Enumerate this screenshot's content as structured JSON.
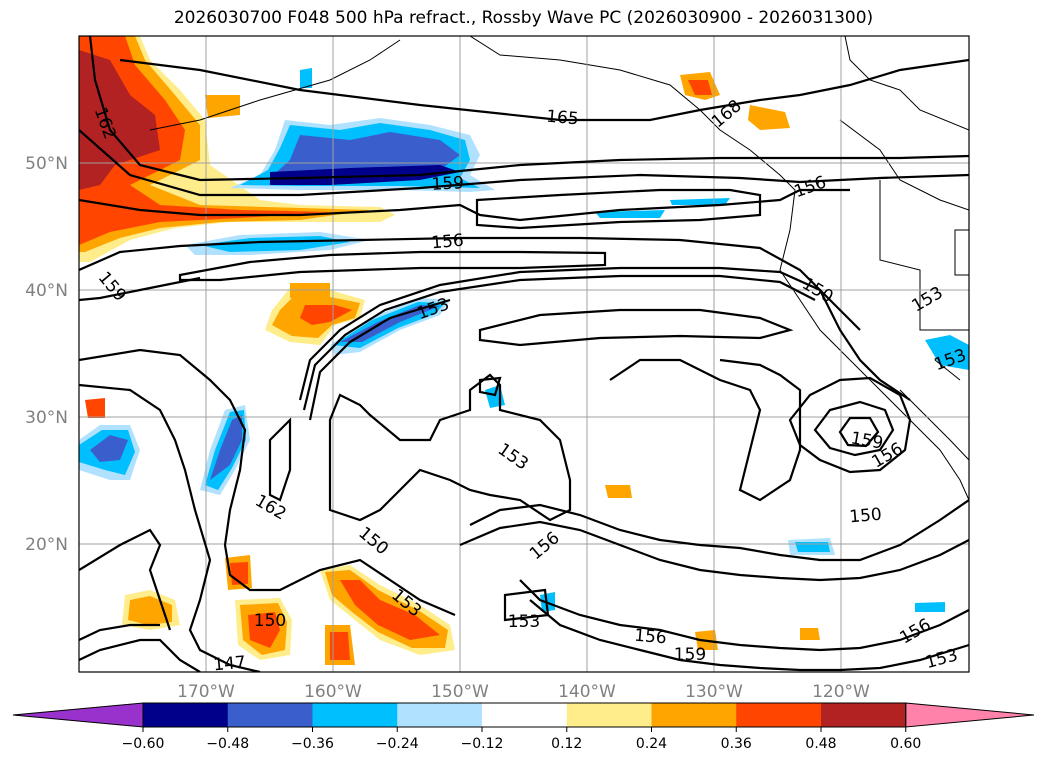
{
  "title": "2026030700 F048 500 hPa refract., Rossby Wave PC (2026030900 - 2026031300)",
  "lat_labels": [
    "50°N",
    "40°N",
    "30°N",
    "20°N"
  ],
  "lon_labels": [
    "170°W",
    "160°W",
    "150°W",
    "140°W",
    "130°W",
    "120°W"
  ],
  "contour_labels": [
    {
      "text": "165"
    },
    {
      "text": "168"
    },
    {
      "text": "162"
    },
    {
      "text": "159"
    },
    {
      "text": "156"
    },
    {
      "text": "156"
    },
    {
      "text": "159"
    },
    {
      "text": "153"
    },
    {
      "text": "150"
    },
    {
      "text": "153"
    },
    {
      "text": "153"
    },
    {
      "text": "153"
    },
    {
      "text": "159"
    },
    {
      "text": "156"
    },
    {
      "text": "162"
    },
    {
      "text": "150"
    },
    {
      "text": "156"
    },
    {
      "text": "150"
    },
    {
      "text": "153"
    },
    {
      "text": "153"
    },
    {
      "text": "150"
    },
    {
      "text": "147"
    },
    {
      "text": "156"
    },
    {
      "text": "159"
    },
    {
      "text": "156"
    },
    {
      "text": "153"
    }
  ],
  "colorbar": {
    "ticks": [
      "−0.60",
      "−0.48",
      "−0.36",
      "−0.24",
      "−0.12",
      "0.12",
      "0.24",
      "0.36",
      "0.48",
      "0.60"
    ],
    "colors": [
      "#9932cc",
      "#00008b",
      "#3a5fcd",
      "#00bfff",
      "#b0e2ff",
      "#ffffff",
      "#ffec8b",
      "#ffa500",
      "#ff4500",
      "#b22222",
      "#ff82ab"
    ]
  }
}
